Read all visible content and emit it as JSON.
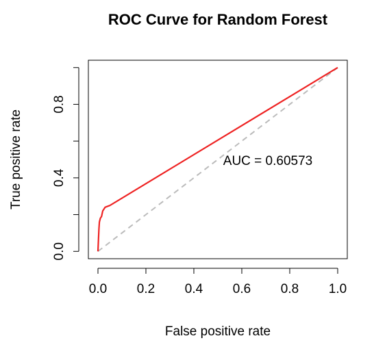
{
  "chart_data": {
    "type": "line",
    "title": "ROC Curve for Random Forest",
    "x_label": "False positive rate",
    "y_label": "True positive rate",
    "annotation": "AUC =  0.60573",
    "x": [
      0,
      0.002,
      0.004,
      0.006,
      0.01,
      0.015,
      0.02,
      0.03,
      0.05,
      1
    ],
    "series": [
      {
        "color": "#ee2222",
        "values": [
          0,
          0.06,
          0.12,
          0.16,
          0.18,
          0.19,
          0.22,
          0.24,
          0.25,
          1
        ]
      }
    ],
    "reference_line": {
      "x": [
        0,
        1
      ],
      "values": [
        0,
        1
      ],
      "color": "#bbbbbb",
      "dashed": true
    },
    "xlim": [
      -0.04,
      1.04
    ],
    "ylim": [
      -0.04,
      1.04
    ],
    "xticks": [
      {
        "value": 0,
        "label": "0.0"
      },
      0.2,
      0.4,
      0.6,
      0.8,
      {
        "value": 1,
        "label": "1.0"
      }
    ],
    "yticks": [
      {
        "value": 0,
        "label": "0.0"
      },
      0.4,
      0.8
    ],
    "yminorticks": [
      0.2,
      0.6,
      1
    ],
    "grid": false
  }
}
